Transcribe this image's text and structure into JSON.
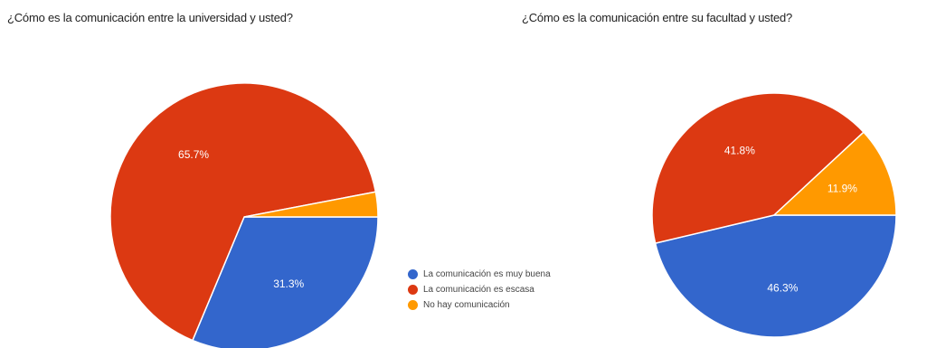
{
  "chart_data": [
    {
      "type": "pie",
      "title": "¿Cómo es la comunicación entre la universidad y usted?",
      "categories": [
        "La comunicación es muy buena",
        "La comunicación es escasa",
        "No hay comunicación"
      ],
      "values": [
        31.3,
        65.7,
        3.0
      ],
      "labels": [
        "31.3%",
        "65.7%",
        ""
      ],
      "colors": [
        "#3366cc",
        "#dc3912",
        "#ff9900"
      ]
    },
    {
      "type": "pie",
      "title": "¿Cómo es la comunicación entre su facultad y usted?",
      "categories": [
        "La comunicación es muy buena",
        "La comunicación es escasa",
        "No hay comunicación"
      ],
      "values": [
        46.3,
        41.8,
        11.9
      ],
      "labels": [
        "46.3%",
        "41.8%",
        "11.9%"
      ],
      "colors": [
        "#3366cc",
        "#dc3912",
        "#ff9900"
      ]
    }
  ],
  "legend": {
    "items": [
      {
        "label": "La comunicación es muy buena",
        "color": "#3366cc"
      },
      {
        "label": "La comunicación es escasa",
        "color": "#dc3912"
      },
      {
        "label": "No hay comunicación",
        "color": "#ff9900"
      }
    ]
  }
}
